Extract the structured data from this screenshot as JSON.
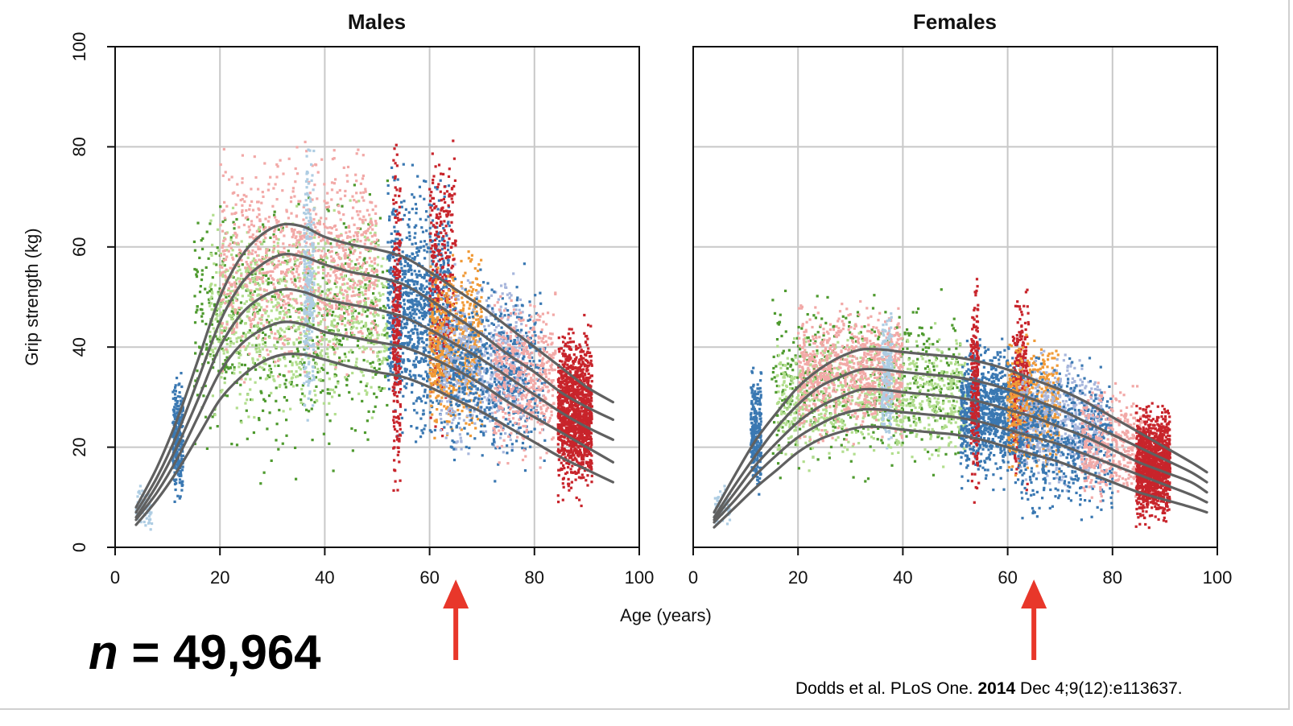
{
  "chart_data": {
    "type": "scatter",
    "xlabel": "Age (years)",
    "ylabel": "Grip strength (kg)",
    "xlim": [
      0,
      100
    ],
    "ylim": [
      0,
      100
    ],
    "xticks": [
      "0",
      "20",
      "40",
      "60",
      "80",
      "100"
    ],
    "yticks": [
      "0",
      "20",
      "40",
      "60",
      "80",
      "100"
    ],
    "grid": true,
    "panels": [
      {
        "title": "Males",
        "arrow_at_age": 65,
        "centile_curves": [
          {
            "x": [
              4,
              8,
              12,
              16,
              20,
              24,
              28,
              32,
              36,
              40,
              45,
              50,
              55,
              60,
              65,
              70,
              75,
              80,
              85,
              90,
              95
            ],
            "y": [
              8,
              16,
              26,
              38,
              50,
              58,
              62.5,
              64.5,
              64,
              62,
              60.5,
              59.5,
              58,
              55,
              51.5,
              48,
              44,
              40,
              36,
              32,
              29
            ]
          },
          {
            "x": [
              4,
              8,
              12,
              16,
              20,
              24,
              28,
              32,
              36,
              40,
              45,
              50,
              55,
              60,
              65,
              70,
              75,
              80,
              85,
              90,
              95
            ],
            "y": [
              7,
              14,
              23,
              34,
              45,
              52.5,
              56.5,
              58.5,
              58,
              56.5,
              55,
              54,
              52.5,
              49.5,
              46,
              42.5,
              38.5,
              35,
              31,
              28,
              25.5
            ]
          },
          {
            "x": [
              4,
              8,
              12,
              16,
              20,
              24,
              28,
              32,
              36,
              40,
              45,
              50,
              55,
              60,
              65,
              70,
              75,
              80,
              85,
              90,
              95
            ],
            "y": [
              6,
              12.5,
              20.5,
              30,
              40,
              46.5,
              50,
              51.5,
              51,
              49.5,
              48.5,
              47.5,
              46,
              43.5,
              40.5,
              37.5,
              34,
              30.5,
              27,
              24,
              21.5
            ]
          },
          {
            "x": [
              4,
              8,
              12,
              16,
              20,
              24,
              28,
              32,
              36,
              40,
              45,
              50,
              55,
              60,
              65,
              70,
              75,
              80,
              85,
              90,
              95
            ],
            "y": [
              5.5,
              11,
              18,
              26.5,
              35,
              40.5,
              43.5,
              45,
              44.5,
              43,
              42,
              41,
              40,
              38,
              35.5,
              32.5,
              29,
              26,
              23,
              20,
              17
            ]
          },
          {
            "x": [
              4,
              8,
              12,
              16,
              20,
              24,
              28,
              32,
              36,
              40,
              45,
              50,
              55,
              60,
              65,
              70,
              75,
              80,
              85,
              90,
              95
            ],
            "y": [
              4.5,
              9.5,
              15.5,
              22.5,
              29.5,
              34,
              37,
              38.5,
              38.5,
              37.5,
              36,
              35,
              34,
              32,
              29.5,
              27,
              24,
              21,
              18,
              15.5,
              13
            ]
          }
        ],
        "scatter_clusters": [
          {
            "color": "#aecde3",
            "age_range": [
              4,
              7
            ],
            "grip_range": [
              2,
              14
            ],
            "count": 70
          },
          {
            "color": "#3a78b2",
            "age_range": [
              11,
              13
            ],
            "grip_range": [
              6,
              37
            ],
            "count": 300
          },
          {
            "color": "#4e9a2e",
            "age_range": [
              15,
              52
            ],
            "grip_range": [
              10,
              78
            ],
            "count": 650
          },
          {
            "color": "#b2de8e",
            "age_range": [
              18,
              52
            ],
            "grip_range": [
              22,
              72
            ],
            "count": 900
          },
          {
            "color": "#f2a9a7",
            "age_range": [
              20,
              50
            ],
            "grip_range": [
              30,
              84
            ],
            "count": 1000
          },
          {
            "color": "#aecde3",
            "age_range": [
              36,
              38
            ],
            "grip_range": [
              20,
              85
            ],
            "count": 260
          },
          {
            "color": "#3a78b2",
            "age_range": [
              52,
              64
            ],
            "grip_range": [
              16,
              80
            ],
            "count": 1000
          },
          {
            "color": "#c8242b",
            "age_range": [
              53,
              54.5
            ],
            "grip_range": [
              1,
              88
            ],
            "count": 280
          },
          {
            "color": "#c8242b",
            "age_range": [
              60,
              65
            ],
            "grip_range": [
              18,
              88
            ],
            "count": 330
          },
          {
            "color": "#f09a37",
            "age_range": [
              60,
              70
            ],
            "grip_range": [
              18,
              62
            ],
            "count": 650
          },
          {
            "color": "#a7b6dc",
            "age_range": [
              62,
              78
            ],
            "grip_range": [
              15,
              58
            ],
            "count": 650
          },
          {
            "color": "#3a78b2",
            "age_range": [
              64,
              82
            ],
            "grip_range": [
              12,
              58
            ],
            "count": 600
          },
          {
            "color": "#f2a9a7",
            "age_range": [
              72,
              84
            ],
            "grip_range": [
              14,
              54
            ],
            "count": 480
          },
          {
            "color": "#c8242b",
            "age_range": [
              84.5,
              91
            ],
            "grip_range": [
              7,
              47
            ],
            "count": 1300
          }
        ]
      },
      {
        "title": "Females",
        "arrow_at_age": 65,
        "centile_curves": [
          {
            "x": [
              4,
              8,
              12,
              16,
              20,
              24,
              28,
              32,
              36,
              40,
              45,
              50,
              55,
              60,
              65,
              70,
              75,
              80,
              85,
              90,
              95,
              98
            ],
            "y": [
              7,
              14.5,
              21.5,
              27,
              32,
              35.5,
              38,
              39.5,
              39.5,
              39,
              38.5,
              38,
              37,
              35.5,
              33.5,
              31.5,
              29,
              26,
              23,
              20,
              17,
              15
            ]
          },
          {
            "x": [
              4,
              8,
              12,
              16,
              20,
              24,
              28,
              32,
              36,
              40,
              45,
              50,
              55,
              60,
              65,
              70,
              75,
              80,
              85,
              90,
              95,
              98
            ],
            "y": [
              6,
              12.5,
              18.5,
              24,
              28.5,
              32,
              34,
              35.5,
              35.5,
              35,
              34.5,
              34,
              33,
              31.5,
              29.5,
              27.5,
              25,
              22.5,
              20,
              17.5,
              15,
              13
            ]
          },
          {
            "x": [
              4,
              8,
              12,
              16,
              20,
              24,
              28,
              32,
              36,
              40,
              45,
              50,
              55,
              60,
              65,
              70,
              75,
              80,
              85,
              90,
              95,
              98
            ],
            "y": [
              5.5,
              11,
              16.5,
              21,
              25,
              28,
              30,
              31.5,
              31.5,
              31,
              30.5,
              30,
              29,
              27.5,
              26,
              24,
              22,
              19.5,
              17,
              15,
              13,
              11
            ]
          },
          {
            "x": [
              4,
              8,
              12,
              16,
              20,
              24,
              28,
              32,
              36,
              40,
              45,
              50,
              55,
              60,
              65,
              70,
              75,
              80,
              85,
              90,
              95,
              98
            ],
            "y": [
              5,
              9.5,
              14.5,
              18.5,
              22,
              24.5,
              26.5,
              27.5,
              27.5,
              27,
              26.5,
              26,
              25,
              23.5,
              22,
              20.5,
              18.5,
              16.5,
              14.5,
              12.5,
              10.5,
              9
            ]
          },
          {
            "x": [
              4,
              8,
              12,
              16,
              20,
              24,
              28,
              32,
              36,
              40,
              45,
              50,
              55,
              60,
              65,
              70,
              75,
              80,
              85,
              90,
              95,
              98
            ],
            "y": [
              4,
              8,
              12,
              15.5,
              19,
              21.5,
              23,
              24,
              24,
              23.5,
              23,
              22.5,
              21.5,
              20,
              18.5,
              17,
              15,
              13,
              11,
              9.5,
              8,
              7
            ]
          }
        ],
        "scatter_clusters": [
          {
            "color": "#aecde3",
            "age_range": [
              4,
              7
            ],
            "grip_range": [
              3,
              13
            ],
            "count": 70
          },
          {
            "color": "#3a78b2",
            "age_range": [
              11,
              13
            ],
            "grip_range": [
              8,
              38
            ],
            "count": 280
          },
          {
            "color": "#4e9a2e",
            "age_range": [
              15,
              51
            ],
            "grip_range": [
              10,
              55
            ],
            "count": 550
          },
          {
            "color": "#b2de8e",
            "age_range": [
              16,
              52
            ],
            "grip_range": [
              14,
              46
            ],
            "count": 850
          },
          {
            "color": "#f2a9a7",
            "age_range": [
              20,
              40
            ],
            "grip_range": [
              18,
              52
            ],
            "count": 850
          },
          {
            "color": "#aecde3",
            "age_range": [
              36,
              38
            ],
            "grip_range": [
              16,
              50
            ],
            "count": 200
          },
          {
            "color": "#3a78b2",
            "age_range": [
              51,
              63
            ],
            "grip_range": [
              10,
              44
            ],
            "count": 1000
          },
          {
            "color": "#c8242b",
            "age_range": [
              53,
              54.5
            ],
            "grip_range": [
              5,
              58
            ],
            "count": 230
          },
          {
            "color": "#c8242b",
            "age_range": [
              61,
              64
            ],
            "grip_range": [
              10,
              55
            ],
            "count": 280
          },
          {
            "color": "#f09a37",
            "age_range": [
              60,
              70
            ],
            "grip_range": [
              12,
              44
            ],
            "count": 550
          },
          {
            "color": "#a7b6dc",
            "age_range": [
              62,
              78
            ],
            "grip_range": [
              8,
              42
            ],
            "count": 600
          },
          {
            "color": "#3a78b2",
            "age_range": [
              62,
              80
            ],
            "grip_range": [
              3,
              40
            ],
            "count": 600
          },
          {
            "color": "#f2a9a7",
            "age_range": [
              74,
              86
            ],
            "grip_range": [
              6,
              35
            ],
            "count": 420
          },
          {
            "color": "#c8242b",
            "age_range": [
              84.5,
              91
            ],
            "grip_range": [
              3,
              30
            ],
            "count": 1300
          }
        ]
      }
    ]
  },
  "annotations": {
    "sample_size_var": "n",
    "sample_size_rest": " = 49,964",
    "citation_pre": "Dodds et al. PLoS One. ",
    "citation_year": "2014",
    "citation_post": " Dec 4;9(12):e113637.",
    "arrow_color": "#e8372a",
    "curve_color": "#606060"
  }
}
